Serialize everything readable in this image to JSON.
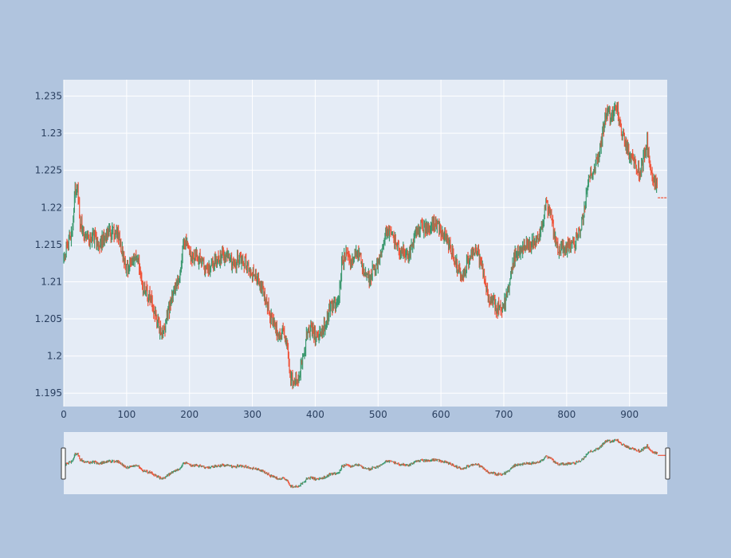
{
  "colors": {
    "paper": "#b0c4de",
    "plot_bg": "#e5ecf6",
    "grid": "#ffffff",
    "increasing": "#3d9970",
    "decreasing": "#ef553b",
    "tick_text": "#2a3f5f"
  },
  "chart_data": {
    "type": "candlestick",
    "title": "",
    "xlabel": "",
    "ylabel": "",
    "xlim": [
      0,
      960
    ],
    "ylim": [
      1.1932,
      1.2372
    ],
    "grid": true,
    "legend": "none",
    "rangeslider": true,
    "x_ticks": [
      0,
      100,
      200,
      300,
      400,
      500,
      600,
      700,
      800,
      900
    ],
    "x_tick_labels": [
      "0",
      "100",
      "200",
      "300",
      "400",
      "500",
      "600",
      "700",
      "800",
      "900"
    ],
    "y_ticks": [
      1.195,
      1.2,
      1.205,
      1.21,
      1.215,
      1.22,
      1.225,
      1.23,
      1.235
    ],
    "y_tick_labels": [
      "1.195",
      "1.2",
      "1.205",
      "1.21",
      "1.215",
      "1.22",
      "1.225",
      "1.23",
      "1.235"
    ],
    "close_anchors": [
      [
        0,
        1.213
      ],
      [
        5,
        1.215
      ],
      [
        10,
        1.216
      ],
      [
        14,
        1.217
      ],
      [
        18,
        1.222
      ],
      [
        22,
        1.223
      ],
      [
        26,
        1.218
      ],
      [
        32,
        1.2165
      ],
      [
        40,
        1.2155
      ],
      [
        48,
        1.216
      ],
      [
        55,
        1.215
      ],
      [
        62,
        1.2155
      ],
      [
        70,
        1.2165
      ],
      [
        78,
        1.217
      ],
      [
        86,
        1.2165
      ],
      [
        93,
        1.214
      ],
      [
        100,
        1.212
      ],
      [
        108,
        1.2125
      ],
      [
        115,
        1.213
      ],
      [
        120,
        1.2125
      ],
      [
        125,
        1.209
      ],
      [
        132,
        1.2085
      ],
      [
        140,
        1.2075
      ],
      [
        147,
        1.205
      ],
      [
        153,
        1.2035
      ],
      [
        160,
        1.2035
      ],
      [
        165,
        1.2055
      ],
      [
        172,
        1.208
      ],
      [
        180,
        1.2095
      ],
      [
        185,
        1.211
      ],
      [
        190,
        1.216
      ],
      [
        196,
        1.2145
      ],
      [
        204,
        1.213
      ],
      [
        212,
        1.2135
      ],
      [
        222,
        1.2125
      ],
      [
        230,
        1.2115
      ],
      [
        238,
        1.2125
      ],
      [
        246,
        1.213
      ],
      [
        255,
        1.2135
      ],
      [
        262,
        1.213
      ],
      [
        270,
        1.2125
      ],
      [
        280,
        1.213
      ],
      [
        290,
        1.2125
      ],
      [
        298,
        1.2115
      ],
      [
        306,
        1.2105
      ],
      [
        315,
        1.209
      ],
      [
        322,
        1.207
      ],
      [
        330,
        1.205
      ],
      [
        338,
        1.2035
      ],
      [
        345,
        1.2025
      ],
      [
        350,
        1.2035
      ],
      [
        355,
        1.2015
      ],
      [
        360,
        1.1975
      ],
      [
        365,
        1.1965
      ],
      [
        370,
        1.1968
      ],
      [
        375,
        1.1975
      ],
      [
        380,
        1.1995
      ],
      [
        386,
        1.2025
      ],
      [
        392,
        1.2035
      ],
      [
        400,
        1.2025
      ],
      [
        406,
        1.203
      ],
      [
        412,
        1.2035
      ],
      [
        418,
        1.2045
      ],
      [
        424,
        1.207
      ],
      [
        432,
        1.2065
      ],
      [
        438,
        1.208
      ],
      [
        442,
        1.2125
      ],
      [
        448,
        1.2135
      ],
      [
        455,
        1.2125
      ],
      [
        462,
        1.2135
      ],
      [
        470,
        1.214
      ],
      [
        478,
        1.2115
      ],
      [
        486,
        1.2105
      ],
      [
        492,
        1.2115
      ],
      [
        500,
        1.2125
      ],
      [
        506,
        1.2145
      ],
      [
        512,
        1.2165
      ],
      [
        520,
        1.2165
      ],
      [
        528,
        1.2155
      ],
      [
        536,
        1.214
      ],
      [
        545,
        1.2135
      ],
      [
        552,
        1.2145
      ],
      [
        560,
        1.216
      ],
      [
        568,
        1.2175
      ],
      [
        576,
        1.217
      ],
      [
        585,
        1.2175
      ],
      [
        592,
        1.218
      ],
      [
        600,
        1.2165
      ],
      [
        608,
        1.2165
      ],
      [
        616,
        1.214
      ],
      [
        622,
        1.2125
      ],
      [
        628,
        1.212
      ],
      [
        634,
        1.2105
      ],
      [
        640,
        1.212
      ],
      [
        646,
        1.2135
      ],
      [
        652,
        1.2145
      ],
      [
        660,
        1.2135
      ],
      [
        666,
        1.2115
      ],
      [
        672,
        1.2095
      ],
      [
        678,
        1.2075
      ],
      [
        686,
        1.2068
      ],
      [
        693,
        1.2065
      ],
      [
        700,
        1.207
      ],
      [
        706,
        1.2085
      ],
      [
        712,
        1.211
      ],
      [
        718,
        1.2135
      ],
      [
        726,
        1.2145
      ],
      [
        734,
        1.215
      ],
      [
        742,
        1.2145
      ],
      [
        748,
        1.2155
      ],
      [
        756,
        1.216
      ],
      [
        762,
        1.2185
      ],
      [
        768,
        1.2205
      ],
      [
        774,
        1.2195
      ],
      [
        780,
        1.2165
      ],
      [
        786,
        1.2145
      ],
      [
        792,
        1.2145
      ],
      [
        800,
        1.2145
      ],
      [
        808,
        1.215
      ],
      [
        814,
        1.2155
      ],
      [
        820,
        1.2165
      ],
      [
        826,
        1.219
      ],
      [
        832,
        1.2225
      ],
      [
        838,
        1.2245
      ],
      [
        844,
        1.2255
      ],
      [
        850,
        1.2265
      ],
      [
        856,
        1.2295
      ],
      [
        862,
        1.2325
      ],
      [
        868,
        1.2325
      ],
      [
        874,
        1.2325
      ],
      [
        880,
        1.2335
      ],
      [
        886,
        1.2305
      ],
      [
        892,
        1.2295
      ],
      [
        898,
        1.2275
      ],
      [
        904,
        1.2265
      ],
      [
        910,
        1.2255
      ],
      [
        916,
        1.2245
      ],
      [
        922,
        1.2265
      ],
      [
        928,
        1.2285
      ],
      [
        932,
        1.2265
      ],
      [
        936,
        1.2245
      ],
      [
        940,
        1.2235
      ],
      [
        944,
        1.2232
      ]
    ],
    "n_bars": 945,
    "tail_flat_value": 1.2213,
    "tail_flat_x": [
      945,
      960
    ]
  }
}
